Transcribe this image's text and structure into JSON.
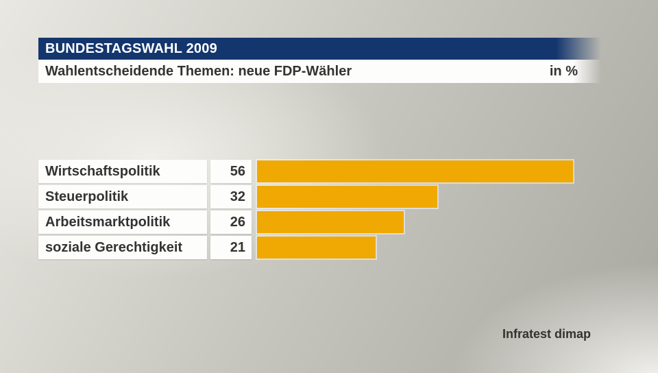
{
  "header": {
    "title": "BUNDESTAGSWAHL 2009",
    "subtitle": "Wahlentscheidende Themen: neue FDP-Wähler",
    "unit_label": "in %"
  },
  "chart_data": {
    "type": "bar",
    "orientation": "horizontal",
    "title": "Wahlentscheidende Themen: neue FDP-Wähler",
    "unit": "%",
    "categories": [
      "Wirtschaftspolitik",
      "Steuerpolitik",
      "Arbeitsmarktpolitik",
      "soziale Gerechtigkeit"
    ],
    "values": [
      56,
      32,
      26,
      21
    ],
    "xlim": [
      0,
      60
    ],
    "bar_color": "#F0A802",
    "legend": "none",
    "grid": "off"
  },
  "source": {
    "label": "Infratest dimap"
  },
  "colors": {
    "header_bg": "#14366E",
    "header_text": "#FFFFFF",
    "panel_bg": "#FDFDFC",
    "text_dark": "#333333",
    "bar": "#F0A802"
  }
}
